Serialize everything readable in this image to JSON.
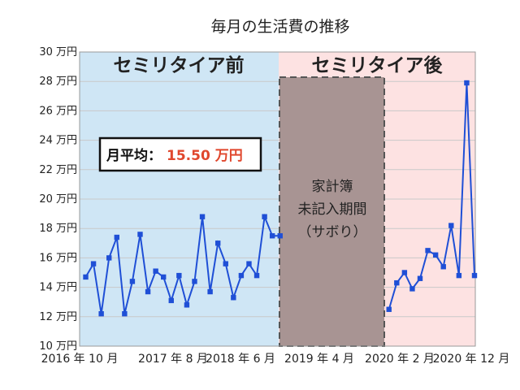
{
  "chart_data": {
    "type": "line",
    "title": "毎月の生活費の推移",
    "y_unit": "万円",
    "ylim": [
      10,
      30
    ],
    "y_ticks": [
      10,
      12,
      14,
      16,
      18,
      20,
      22,
      24,
      26,
      28,
      30
    ],
    "x_ticks": [
      "2016 年 10 月",
      "2017 年 8 月",
      "2018 年 6 月",
      "2019 年 4 月",
      "2020 年 2 月",
      "2020 年 12 月"
    ],
    "grid": true,
    "series_color": "#1f4fd6",
    "series": [
      {
        "x": [
          "2016-10",
          "2016-11",
          "2016-12",
          "2017-01",
          "2017-02",
          "2017-03",
          "2017-04",
          "2017-05",
          "2017-06",
          "2017-07",
          "2017-08",
          "2017-09",
          "2017-10",
          "2017-11",
          "2017-12",
          "2018-01",
          "2018-02",
          "2018-03",
          "2018-04",
          "2018-05",
          "2018-06",
          "2018-07",
          "2018-08",
          "2018-09",
          "2018-10",
          "2018-11"
        ],
        "values": [
          14.7,
          15.6,
          12.2,
          16.0,
          17.4,
          12.2,
          14.4,
          17.6,
          13.7,
          15.1,
          14.7,
          13.1,
          14.8,
          12.8,
          14.4,
          18.8,
          13.7,
          17.0,
          15.6,
          13.3,
          14.8,
          15.6,
          14.8,
          18.8,
          17.5,
          17.5
        ]
      },
      {
        "x": [
          "2020-01",
          "2020-02",
          "2020-03",
          "2020-04",
          "2020-05",
          "2020-06",
          "2020-07",
          "2020-08",
          "2020-09",
          "2020-10",
          "2020-11",
          "2020-12"
        ],
        "values": [
          12.5,
          14.3,
          15.0,
          13.9,
          14.6,
          16.5,
          16.2,
          15.4,
          18.2,
          14.8,
          27.9,
          14.8
        ]
      }
    ],
    "regions": [
      {
        "label": "セミリタイア前",
        "from": "2016-10",
        "to": "2019-01",
        "color": "#cfe6f5",
        "label_color": "#111111"
      },
      {
        "label": "セミリタイア後",
        "from": "2019-01",
        "to": "2020-12",
        "color": "#fde2e2",
        "label_color": "#111111"
      }
    ],
    "gap": {
      "from": "2019-01",
      "to": "2019-12",
      "lines": [
        "家計簿",
        "未記入期間",
        "（サボり）"
      ],
      "color": "#a89493"
    },
    "annotation": {
      "label": "月平均：",
      "value": "15.50 万円",
      "value_color": "#e0472d"
    }
  }
}
